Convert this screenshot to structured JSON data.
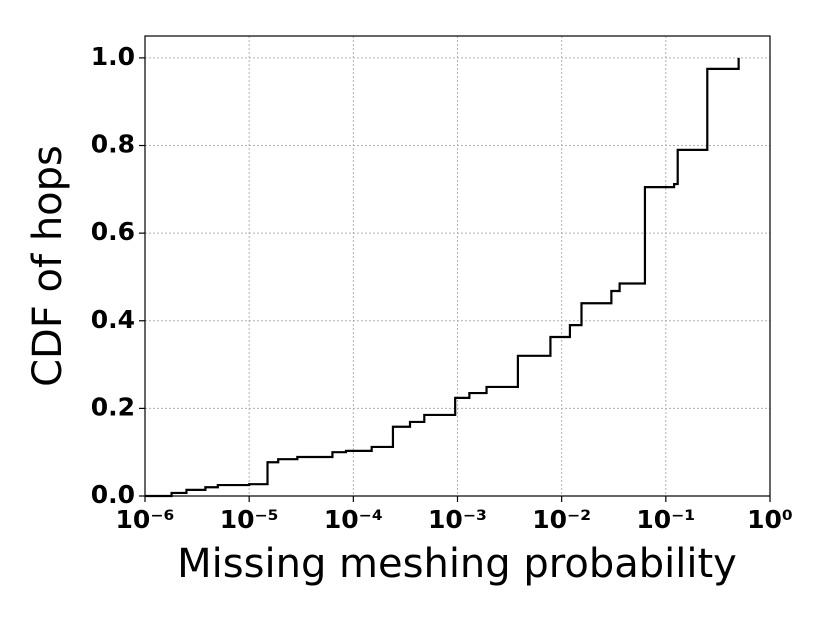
{
  "chart_data": {
    "type": "line",
    "drawstyle": "steps-post",
    "xlabel": "Missing meshing probability",
    "ylabel": "CDF of hops",
    "xscale": "log",
    "grid": true,
    "xlim": [
      1e-06,
      1
    ],
    "ylim": [
      0,
      1.05
    ],
    "xticks": [
      {
        "value": 1e-06,
        "label": "10⁻⁶"
      },
      {
        "value": 1e-05,
        "label": "10⁻⁵"
      },
      {
        "value": 0.0001,
        "label": "10⁻⁴"
      },
      {
        "value": 0.001,
        "label": "10⁻³"
      },
      {
        "value": 0.01,
        "label": "10⁻²"
      },
      {
        "value": 0.1,
        "label": "10⁻¹"
      },
      {
        "value": 1,
        "label": "10⁰"
      }
    ],
    "yticks": [
      {
        "value": 0,
        "label": "0.0"
      },
      0.2,
      0.4,
      0.6,
      0.8,
      {
        "value": 1,
        "label": "1.0"
      }
    ],
    "color": "#000000",
    "x": [
      1e-06,
      1.8e-06,
      2.5e-06,
      3.8e-06,
      5e-06,
      1e-05,
      1.5e-05,
      1.9e-05,
      2.9e-05,
      6.3e-05,
      8.5e-05,
      0.00015,
      0.00024,
      0.00035,
      0.00048,
      0.00095,
      0.0013,
      0.0019,
      0.0038,
      0.0078,
      0.012,
      0.0155,
      0.03,
      0.036,
      0.063,
      0.12,
      0.13,
      0.25,
      0.5
    ],
    "values": [
      0,
      0.007,
      0.014,
      0.02,
      0.025,
      0.027,
      0.077,
      0.084,
      0.089,
      0.1,
      0.103,
      0.112,
      0.158,
      0.169,
      0.185,
      0.224,
      0.235,
      0.249,
      0.32,
      0.363,
      0.39,
      0.44,
      0.468,
      0.485,
      0.705,
      0.712,
      0.79,
      0.975,
      1.0
    ]
  }
}
